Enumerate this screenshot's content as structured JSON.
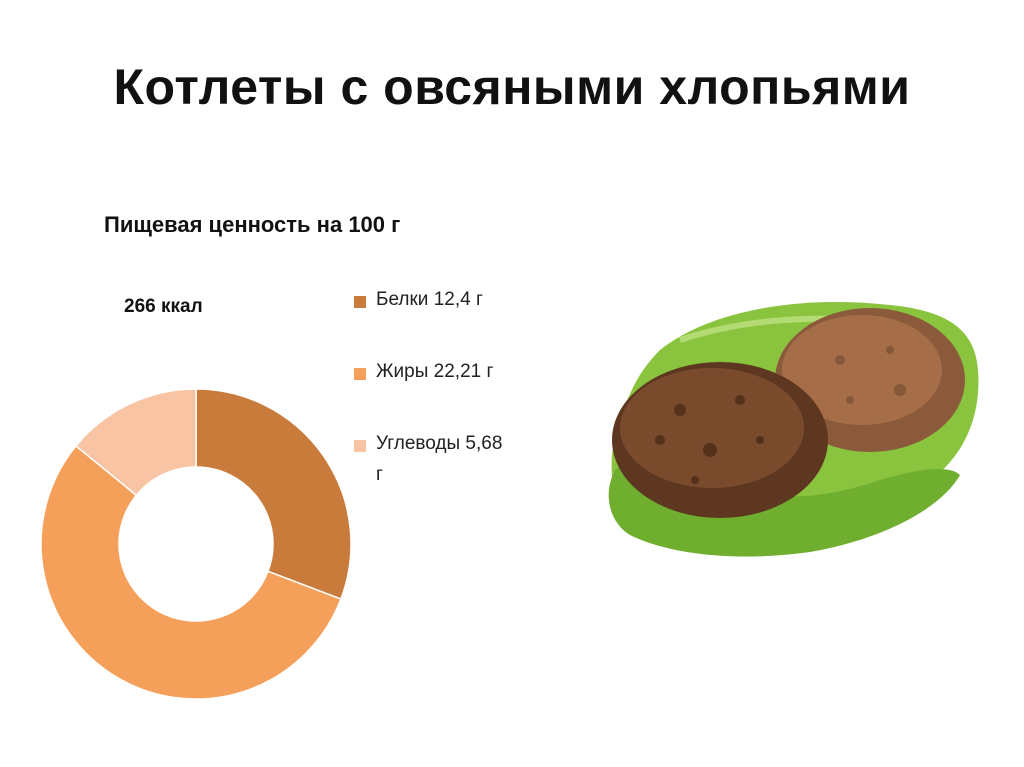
{
  "slide": {
    "title": "Котлеты с овсяными хлопьями"
  },
  "chart_data": {
    "type": "pie",
    "title": "Пищевая ценность на 100 г",
    "center_label": "266 ккал",
    "donut": true,
    "legend_position": "right",
    "categories": [
      "Белки 12,4 г",
      "Жиры 22,21 г",
      "Углеводы 5,68 г"
    ],
    "values": [
      12.4,
      22.21,
      5.68
    ],
    "colors": [
      "#c97b3c",
      "#f5a05a",
      "#f8c4a4"
    ],
    "start_angle_deg": 0,
    "direction": "clockwise"
  },
  "image": {
    "icon": "fried-cutlets-on-lettuce-photo"
  }
}
